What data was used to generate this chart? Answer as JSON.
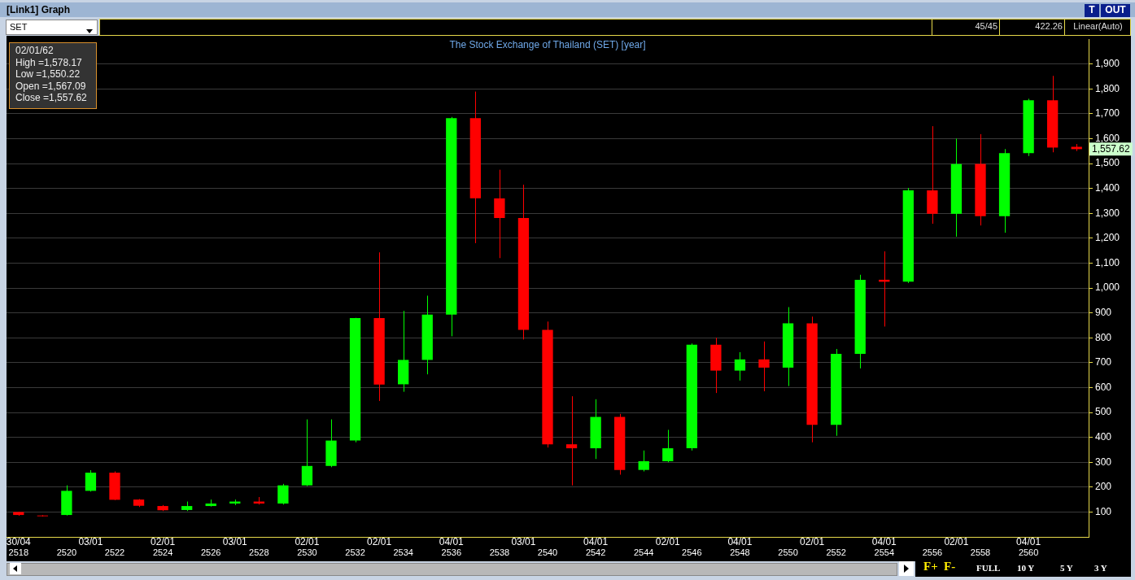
{
  "chart_data": {
    "type": "candlestick",
    "title": "The Stock Exchange of Thailand (SET) [year]",
    "categories": [
      "2518",
      null,
      "2520",
      null,
      "2522",
      null,
      "2524",
      null,
      "2526",
      null,
      "2528",
      null,
      "2530",
      null,
      "2532",
      null,
      "2534",
      null,
      "2536",
      null,
      "2538",
      null,
      "2540",
      null,
      "2542",
      null,
      "2544",
      null,
      "2546",
      null,
      "2548",
      null,
      "2550",
      null,
      "2552",
      null,
      "2554",
      null,
      "2556",
      null,
      "2558",
      null,
      "2560",
      null,
      null
    ],
    "ohlc": [
      [
        100,
        101,
        85,
        88
      ],
      [
        86,
        87,
        82,
        83
      ],
      [
        88,
        207,
        86,
        185
      ],
      [
        185,
        268,
        182,
        258
      ],
      [
        258,
        263,
        148,
        149
      ],
      [
        150,
        152,
        120,
        125
      ],
      [
        124,
        128,
        104,
        107
      ],
      [
        108,
        142,
        104,
        124
      ],
      [
        124,
        150,
        122,
        134
      ],
      [
        134,
        150,
        128,
        142
      ],
      [
        142,
        160,
        130,
        134
      ],
      [
        134,
        213,
        130,
        207
      ],
      [
        207,
        472,
        204,
        285
      ],
      [
        285,
        472,
        280,
        387
      ],
      [
        387,
        880,
        380,
        879
      ],
      [
        879,
        1143,
        546,
        612
      ],
      [
        613,
        908,
        583,
        711
      ],
      [
        711,
        969,
        653,
        893
      ],
      [
        893,
        1687,
        806,
        1682
      ],
      [
        1682,
        1789,
        1180,
        1360
      ],
      [
        1360,
        1475,
        1120,
        1281
      ],
      [
        1281,
        1415,
        793,
        832
      ],
      [
        832,
        865,
        359,
        372
      ],
      [
        372,
        565,
        207,
        356
      ],
      [
        356,
        553,
        313,
        482
      ],
      [
        482,
        494,
        250,
        269
      ],
      [
        269,
        347,
        263,
        304
      ],
      [
        304,
        430,
        300,
        356
      ],
      [
        356,
        777,
        347,
        772
      ],
      [
        772,
        800,
        578,
        668
      ],
      [
        668,
        742,
        628,
        713
      ],
      [
        713,
        785,
        585,
        680
      ],
      [
        680,
        923,
        606,
        858
      ],
      [
        858,
        885,
        380,
        450
      ],
      [
        450,
        755,
        406,
        735
      ],
      [
        735,
        1053,
        677,
        1033
      ],
      [
        1033,
        1147,
        845,
        1025
      ],
      [
        1025,
        1402,
        1020,
        1392
      ],
      [
        1392,
        1650,
        1258,
        1298
      ],
      [
        1298,
        1600,
        1206,
        1498
      ],
      [
        1498,
        1618,
        1251,
        1288
      ],
      [
        1288,
        1558,
        1222,
        1542
      ],
      [
        1542,
        1760,
        1530,
        1754
      ],
      [
        1754,
        1852,
        1545,
        1564
      ],
      [
        1567.09,
        1578.17,
        1550.22,
        1557.62
      ]
    ],
    "colors": [
      "#ff0000",
      "#ff0000",
      "#00ff00",
      "#00ff00",
      "#ff0000",
      "#ff0000",
      "#ff0000",
      "#00ff00",
      "#00ff00",
      "#00ff00",
      "#ff0000",
      "#00ff00",
      "#00ff00",
      "#00ff00",
      "#00ff00",
      "#ff0000",
      "#00ff00",
      "#00ff00",
      "#00ff00",
      "#ff0000",
      "#ff0000",
      "#ff0000",
      "#ff0000",
      "#ff0000",
      "#00ff00",
      "#ff0000",
      "#00ff00",
      "#00ff00",
      "#00ff00",
      "#ff0000",
      "#00ff00",
      "#ff0000",
      "#00ff00",
      "#ff0000",
      "#00ff00",
      "#00ff00",
      "#ff0000",
      "#00ff00",
      "#ff0000",
      "#00ff00",
      "#ff0000",
      "#00ff00",
      "#00ff00",
      "#ff0000",
      "#ff0000"
    ],
    "ylim": [
      0,
      2000
    ],
    "yticks": [
      100,
      200,
      300,
      400,
      500,
      600,
      700,
      800,
      900,
      {
        "value": 1000,
        "label": "1,000"
      },
      {
        "value": 1100,
        "label": "1,100"
      },
      {
        "value": 1200,
        "label": "1,200"
      },
      {
        "value": 1300,
        "label": "1,300"
      },
      {
        "value": 1400,
        "label": "1,400"
      },
      {
        "value": 1500,
        "label": "1,500"
      },
      {
        "value": 1600,
        "label": "1,600"
      },
      {
        "value": 1700,
        "label": "1,700"
      },
      {
        "value": 1800,
        "label": "1,800"
      },
      {
        "value": 1900,
        "label": "1,900"
      }
    ],
    "grid": "y",
    "legend": false,
    "annotations": [
      "[Link1] Graph",
      "SET",
      "45/45",
      "422.26",
      "Linear(Auto)",
      "T",
      "OUT",
      "02/01/62",
      "High =1,578.17",
      "Low =1,550.22",
      "Open =1,567.09",
      "Close =1,557.62",
      "F+",
      "F-",
      "FULL",
      "10 Y",
      "5 Y",
      "3 Y",
      "30/04",
      "03/01",
      "02/01",
      "03/01",
      "02/01",
      "02/01",
      "04/01",
      "03/01",
      "04/01",
      "02/01",
      "04/01",
      "02/01",
      "04/01",
      "02/01",
      "04/01",
      "1,557.62"
    ]
  }
}
